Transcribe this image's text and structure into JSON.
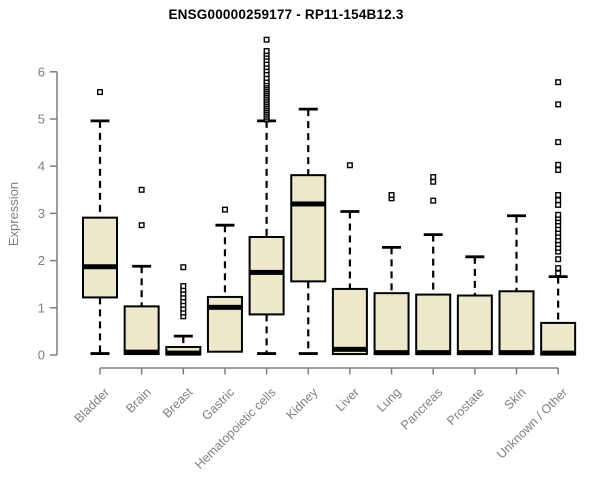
{
  "chart_data": {
    "type": "boxplot",
    "title": "ENSG00000259177 - RP11-154B12.3",
    "ylabel": "Expression",
    "xlabel": "",
    "ylim": [
      0,
      6.8
    ],
    "yticks": [
      0,
      1,
      2,
      3,
      4,
      5,
      6
    ],
    "grid": false,
    "legend": "none",
    "whisker_style": "dashed",
    "outlier_marker": "open-square",
    "colors": {
      "box_fill": "#EDE8CC",
      "box_border": "#000000",
      "median": "#000000",
      "whisker": "#000000",
      "outlier": "#000000",
      "axis": "#7f7f7f",
      "tick_label": "#7f7f7f",
      "title": "#000000",
      "background": "#ffffff"
    },
    "categories": [
      "Bladder",
      "Brain",
      "Breast",
      "Gastric",
      "Hematopoietic cells",
      "Kidney",
      "Liver",
      "Lung",
      "Pancreas",
      "Prostate",
      "Skin",
      "Unknown / Other"
    ],
    "boxes": [
      {
        "category": "Bladder",
        "whisker_low": 0.03,
        "q1": 1.22,
        "median": 1.87,
        "q3": 2.91,
        "whisker_high": 4.96,
        "outliers": [
          5.57
        ]
      },
      {
        "category": "Brain",
        "whisker_low": 0.0,
        "q1": 0.02,
        "median": 0.06,
        "q3": 1.03,
        "whisker_high": 1.88,
        "outliers": [
          2.75,
          3.5
        ]
      },
      {
        "category": "Breast",
        "whisker_low": 0.0,
        "q1": 0.01,
        "median": 0.04,
        "q3": 0.17,
        "whisker_high": 0.4,
        "outliers": [
          0.82,
          0.9,
          0.98,
          1.06,
          1.14,
          1.22,
          1.3,
          1.38,
          1.46,
          1.86
        ]
      },
      {
        "category": "Gastric",
        "whisker_low": 0.03,
        "q1": 0.07,
        "median": 1.01,
        "q3": 1.23,
        "whisker_high": 2.75,
        "outliers": [
          3.08
        ]
      },
      {
        "category": "Hematopoietic cells",
        "whisker_low": 0.03,
        "q1": 0.86,
        "median": 1.75,
        "q3": 2.5,
        "whisker_high": 4.96,
        "outliers": [
          4.99,
          5.03,
          5.07,
          5.11,
          5.15,
          5.19,
          5.23,
          5.27,
          5.31,
          5.35,
          5.39,
          5.43,
          5.47,
          5.51,
          5.55,
          5.59,
          5.63,
          5.67,
          5.71,
          5.75,
          5.8,
          5.87,
          5.95,
          6.03,
          6.1,
          6.17,
          6.25,
          6.32,
          6.38,
          6.44,
          6.68
        ]
      },
      {
        "category": "Kidney",
        "whisker_low": 0.03,
        "q1": 1.56,
        "median": 3.2,
        "q3": 3.81,
        "whisker_high": 5.21,
        "outliers": []
      },
      {
        "category": "Liver",
        "whisker_low": 0.0,
        "q1": 0.02,
        "median": 0.12,
        "q3": 1.4,
        "whisker_high": 3.04,
        "outliers": [
          4.02
        ]
      },
      {
        "category": "Lung",
        "whisker_low": 0.0,
        "q1": 0.02,
        "median": 0.05,
        "q3": 1.31,
        "whisker_high": 2.28,
        "outliers": [
          3.32,
          3.39
        ]
      },
      {
        "category": "Pancreas",
        "whisker_low": 0.0,
        "q1": 0.02,
        "median": 0.05,
        "q3": 1.28,
        "whisker_high": 2.55,
        "outliers": [
          3.27,
          3.67,
          3.77
        ]
      },
      {
        "category": "Prostate",
        "whisker_low": 0.0,
        "q1": 0.02,
        "median": 0.05,
        "q3": 1.26,
        "whisker_high": 2.08,
        "outliers": []
      },
      {
        "category": "Skin",
        "whisker_low": 0.0,
        "q1": 0.02,
        "median": 0.05,
        "q3": 1.35,
        "whisker_high": 2.95,
        "outliers": []
      },
      {
        "category": "Unknown / Other",
        "whisker_low": 0.0,
        "q1": 0.01,
        "median": 0.04,
        "q3": 0.68,
        "whisker_high": 1.66,
        "outliers": [
          1.73,
          1.84,
          2.03,
          2.19,
          2.27,
          2.35,
          2.43,
          2.51,
          2.59,
          2.67,
          2.75,
          2.83,
          2.9,
          2.97,
          3.18,
          3.28,
          3.39,
          3.92,
          4.03,
          4.51,
          5.31,
          5.78
        ]
      }
    ]
  }
}
